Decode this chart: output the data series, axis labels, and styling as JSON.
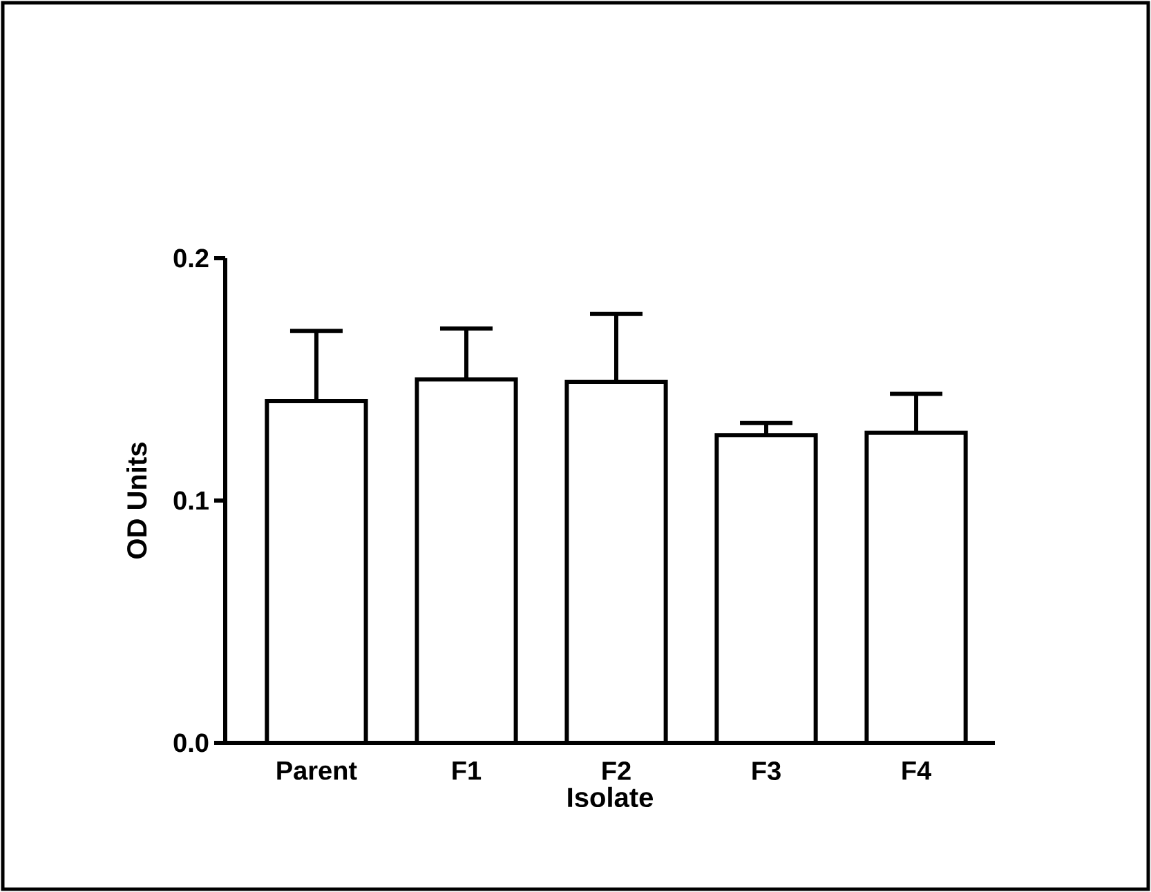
{
  "chart_data": {
    "type": "bar",
    "xlabel": "Isolate",
    "ylabel": "OD Units",
    "categories": [
      "Parent",
      "F1",
      "F2",
      "F3",
      "F4"
    ],
    "values": [
      0.141,
      0.15,
      0.149,
      0.127,
      0.128
    ],
    "errors": [
      [
        0.141,
        0.17
      ],
      [
        0.15,
        0.171
      ],
      [
        0.149,
        0.177
      ],
      [
        0.127,
        0.132
      ],
      [
        0.128,
        0.144
      ]
    ],
    "color": "#ffffff",
    "ylim": [
      0,
      0.2
    ],
    "yticks": [
      {
        "value": 0,
        "label": "0.0"
      },
      0.1,
      0.2
    ],
    "grid": false
  }
}
